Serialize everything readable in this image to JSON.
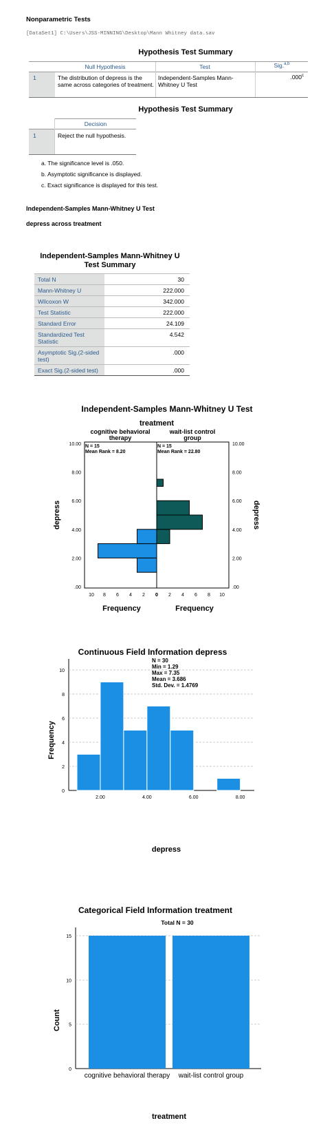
{
  "heading": "Nonparametric Tests",
  "dataset": "[DataSet1] C:\\Users\\JSS-MINNING\\Desktop\\Mann Whitney data.sav",
  "summary1": {
    "title": "Hypothesis Test Summary",
    "headers": [
      "Null Hypothesis",
      "Test",
      "Sig."
    ],
    "sig_sup": "a,b",
    "row": {
      "num": "1",
      "null": "The distribution of depress is the same across categories of treatment.",
      "test": "Independent-Samples Mann-Whitney U Test",
      "sig": ".000",
      "sig_sup": "c"
    }
  },
  "summary2": {
    "title": "Hypothesis Test Summary",
    "header": "Decision",
    "row": {
      "num": "1",
      "decision": "Reject the null hypothesis."
    }
  },
  "footnotes": [
    "a. The significance level is .050.",
    "b. Asymptotic significance is displayed.",
    "c. Exact significance is displayed for this test."
  ],
  "section1": "Independent-Samples Mann-Whitney U Test",
  "section2": "depress across treatment",
  "mw_summary": {
    "title_line1": "Independent-Samples Mann-Whitney U",
    "title_line2": "Test Summary",
    "rows": [
      {
        "label": "Total N",
        "value": "30"
      },
      {
        "label": "Mann-Whitney U",
        "value": "222.000"
      },
      {
        "label": "Wilcoxon W",
        "value": "342.000"
      },
      {
        "label": "Test Statistic",
        "value": "222.000"
      },
      {
        "label": "Standard Error",
        "value": "24.109"
      },
      {
        "label": "Standardized Test Statistic",
        "value": "4.542"
      },
      {
        "label": "Asymptotic Sig.(2-sided test)",
        "value": ".000"
      },
      {
        "label": "Exact Sig.(2-sided test)",
        "value": ".000"
      }
    ]
  },
  "chart_data": [
    {
      "type": "bar",
      "title": "Independent-Samples Mann-Whitney U Test",
      "subtitle": "treatment",
      "groups": [
        {
          "name": "cognitive behavioral therapy",
          "n_label": "N = 15",
          "rank_label": "Mean Rank = 8.20",
          "bins": [
            {
              "from": 1.0,
              "to": 2.0,
              "freq": 3
            },
            {
              "from": 2.0,
              "to": 3.0,
              "freq": 9
            },
            {
              "from": 3.0,
              "to": 4.0,
              "freq": 3
            }
          ],
          "color": "#1a8fe3"
        },
        {
          "name": "wait-list control group",
          "n_label": "N = 15",
          "rank_label": "Mean Rank = 22.80",
          "bins": [
            {
              "from": 3.0,
              "to": 4.0,
              "freq": 2
            },
            {
              "from": 4.0,
              "to": 5.0,
              "freq": 7
            },
            {
              "from": 5.0,
              "to": 6.0,
              "freq": 5
            },
            {
              "from": 7.0,
              "to": 7.5,
              "freq": 1
            }
          ],
          "color": "#0e5a58"
        }
      ],
      "ylabel": "depress",
      "xlabel": "Frequency",
      "ylim": [
        0,
        10
      ],
      "yticks": [
        ".00",
        "2.00",
        "4.00",
        "6.00",
        "8.00",
        "10.00"
      ],
      "xticks_left": [
        "10",
        "8",
        "6",
        "4",
        "2",
        "0"
      ],
      "xticks_right": [
        "0",
        "2",
        "4",
        "6",
        "8",
        "10"
      ]
    },
    {
      "type": "bar",
      "title": "Continuous Field Information depress",
      "stats": [
        "N = 30",
        "Min = 1.29",
        "Max = 7.35",
        "Mean = 3.686",
        "Std. Dev. = 1.4769"
      ],
      "bins": [
        {
          "from": 1.0,
          "to": 2.0,
          "freq": 3
        },
        {
          "from": 2.0,
          "to": 3.0,
          "freq": 9
        },
        {
          "from": 3.0,
          "to": 4.0,
          "freq": 5
        },
        {
          "from": 4.0,
          "to": 5.0,
          "freq": 7
        },
        {
          "from": 5.0,
          "to": 6.0,
          "freq": 5
        },
        {
          "from": 7.0,
          "to": 8.0,
          "freq": 1
        }
      ],
      "xlabel": "depress",
      "ylabel": "Frequency",
      "xticks": [
        "2.00",
        "4.00",
        "6.00",
        "8.00"
      ],
      "yticks": [
        "0",
        "2",
        "4",
        "6",
        "8",
        "10"
      ],
      "ylim": [
        0,
        10
      ],
      "color": "#1a8fe3"
    },
    {
      "type": "bar",
      "title": "Categorical Field Information treatment",
      "annotation": "Total N =  30",
      "categories": [
        "cognitive behavioral therapy",
        "wait-list control group"
      ],
      "values": [
        15,
        15
      ],
      "xlabel": "treatment",
      "ylabel": "Count",
      "yticks": [
        "0",
        "5",
        "10",
        "15"
      ],
      "ylim": [
        0,
        15
      ],
      "color": "#1a8fe3"
    }
  ]
}
